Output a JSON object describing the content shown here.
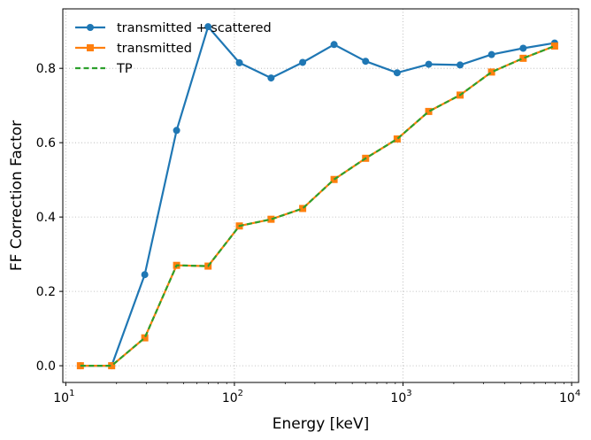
{
  "chart_data": {
    "type": "line",
    "title": "",
    "xlabel": "Energy [keV]",
    "ylabel": "FF Correction Factor",
    "xscale": "log",
    "xlim": [
      9.6,
      11000
    ],
    "ylim": [
      -0.045,
      0.96
    ],
    "x_ticks": [
      10,
      100,
      1000,
      10000
    ],
    "x_tick_labels": [
      {
        "base": "10",
        "exp": "1"
      },
      {
        "base": "10",
        "exp": "2"
      },
      {
        "base": "10",
        "exp": "3"
      },
      {
        "base": "10",
        "exp": "4"
      }
    ],
    "y_ticks": [
      0.0,
      0.2,
      0.4,
      0.6,
      0.8
    ],
    "y_tick_labels": [
      "0.0",
      "0.2",
      "0.4",
      "0.6",
      "0.8"
    ],
    "grid": true,
    "legend_position": "top-left",
    "x": [
      12.2,
      18.7,
      29.4,
      45.4,
      69.8,
      107,
      165,
      254,
      390,
      600,
      923,
      1420,
      2180,
      3350,
      5160,
      7930
    ],
    "series": [
      {
        "name": "transmitted + scattered",
        "color": "#1f77b4",
        "marker": "circle",
        "linestyle": "solid",
        "values": [
          0.0,
          0.0,
          0.245,
          0.633,
          0.912,
          0.815,
          0.774,
          0.816,
          0.864,
          0.819,
          0.788,
          0.811,
          0.809,
          0.837,
          0.854,
          0.868
        ]
      },
      {
        "name": "transmitted",
        "color": "#ff7f0e",
        "marker": "square",
        "linestyle": "solid",
        "values": [
          0.0,
          0.0,
          0.075,
          0.27,
          0.268,
          0.376,
          0.394,
          0.423,
          0.501,
          0.558,
          0.61,
          0.684,
          0.728,
          0.79,
          0.827,
          0.86
        ]
      },
      {
        "name": "TP",
        "color": "#2ca02c",
        "marker": "none",
        "linestyle": "dashed",
        "values": [
          0.0,
          0.0,
          0.075,
          0.27,
          0.268,
          0.376,
          0.394,
          0.423,
          0.501,
          0.558,
          0.61,
          0.684,
          0.728,
          0.79,
          0.827,
          0.86
        ]
      }
    ]
  }
}
